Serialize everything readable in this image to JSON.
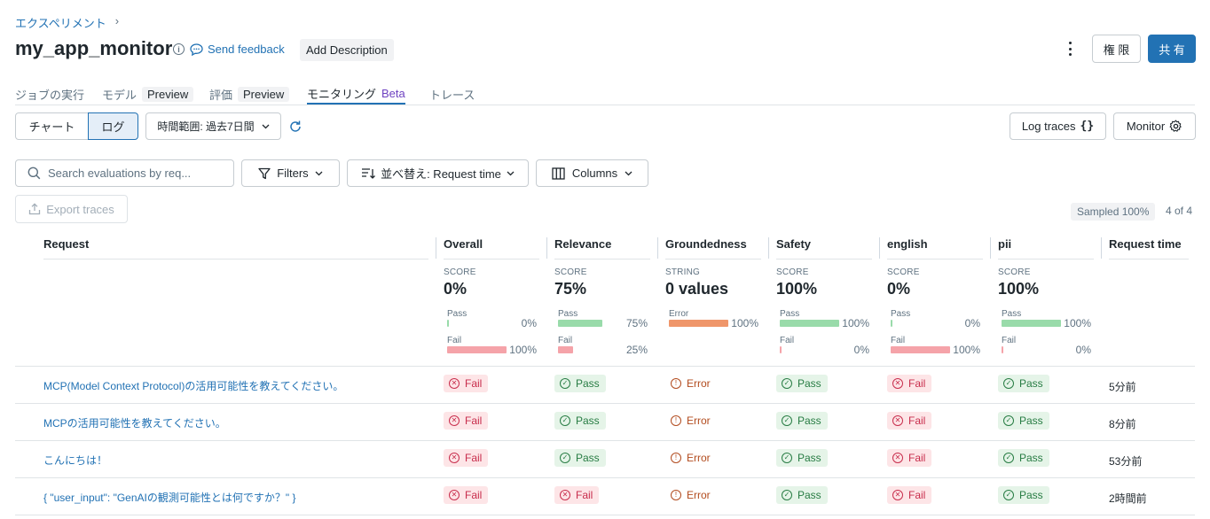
{
  "breadcrumb": {
    "label": "エクスペリメント",
    "sep": "›"
  },
  "title": "my_app_monitor",
  "header": {
    "send_feedback": "Send feedback",
    "add_description": "Add Description",
    "permissions": "権 限",
    "share": "共 有"
  },
  "tabs": [
    {
      "label": "ジョブの実行",
      "tag": ""
    },
    {
      "label": "モデル",
      "tag": "Preview"
    },
    {
      "label": "評価",
      "tag": "Preview"
    },
    {
      "label": "モニタリング",
      "tag": "Beta"
    },
    {
      "label": "トレース",
      "tag": ""
    }
  ],
  "toolbar": {
    "chart": "チャート",
    "log": "ログ",
    "time_range": "時間範囲: 過去7日間",
    "log_traces": "Log traces",
    "monitor": "Monitor"
  },
  "filters": {
    "search_placeholder": "Search evaluations by req...",
    "filters": "Filters",
    "sort": "並べ替え: Request time",
    "columns": "Columns",
    "export": "Export traces",
    "sampled": "Sampled 100%",
    "count": "4 of 4"
  },
  "columns": {
    "request": "Request",
    "overall": "Overall",
    "relevance": "Relevance",
    "groundedness": "Groundedness",
    "safety": "Safety",
    "english": "english",
    "pii": "pii",
    "request_time": "Request time"
  },
  "summary": {
    "overall": {
      "type": "SCORE",
      "value": "0%",
      "pass_label": "Pass",
      "pass_pct": "0%",
      "pass_frac": 0,
      "fail_label": "Fail",
      "fail_pct": "100%",
      "fail_frac": 1
    },
    "relevance": {
      "type": "SCORE",
      "value": "75%",
      "pass_label": "Pass",
      "pass_pct": "75%",
      "pass_frac": 0.75,
      "fail_label": "Fail",
      "fail_pct": "25%",
      "fail_frac": 0.25
    },
    "groundedness": {
      "type": "STRING",
      "value": "0 values",
      "error_label": "Error",
      "error_pct": "100%",
      "error_frac": 1
    },
    "safety": {
      "type": "SCORE",
      "value": "100%",
      "pass_label": "Pass",
      "pass_pct": "100%",
      "pass_frac": 1,
      "fail_label": "Fail",
      "fail_pct": "0%",
      "fail_frac": 0
    },
    "english": {
      "type": "SCORE",
      "value": "0%",
      "pass_label": "Pass",
      "pass_pct": "0%",
      "pass_frac": 0,
      "fail_label": "Fail",
      "fail_pct": "100%",
      "fail_frac": 1
    },
    "pii": {
      "type": "SCORE",
      "value": "100%",
      "pass_label": "Pass",
      "pass_pct": "100%",
      "pass_frac": 1,
      "fail_label": "Fail",
      "fail_pct": "0%",
      "fail_frac": 0
    }
  },
  "rows": [
    {
      "request": "MCP(Model Context Protocol)の活用可能性を教えてください。",
      "overall": "Fail",
      "relevance": "Pass",
      "groundedness": "Error",
      "safety": "Pass",
      "english": "Fail",
      "pii": "Pass",
      "time": "5分前"
    },
    {
      "request": "MCPの活用可能性を教えてください。",
      "overall": "Fail",
      "relevance": "Pass",
      "groundedness": "Error",
      "safety": "Pass",
      "english": "Fail",
      "pii": "Pass",
      "time": "8分前"
    },
    {
      "request": "こんにちは！",
      "overall": "Fail",
      "relevance": "Pass",
      "groundedness": "Error",
      "safety": "Pass",
      "english": "Fail",
      "pii": "Pass",
      "time": "53分前"
    },
    {
      "request": "{ \"user_input\": \"GenAIの観測可能性とは何ですか？\" }",
      "overall": "Fail",
      "relevance": "Fail",
      "groundedness": "Error",
      "safety": "Pass",
      "english": "Fail",
      "pii": "Pass",
      "time": "2時間前"
    }
  ],
  "colors": {
    "accent": "#2272b4",
    "pass": "#277c43",
    "fail": "#c82d4c",
    "error": "#b24b1e",
    "pass_bar": "#99dbaa",
    "fail_bar": "#f5a3a9",
    "error_bar": "#ef966a"
  }
}
